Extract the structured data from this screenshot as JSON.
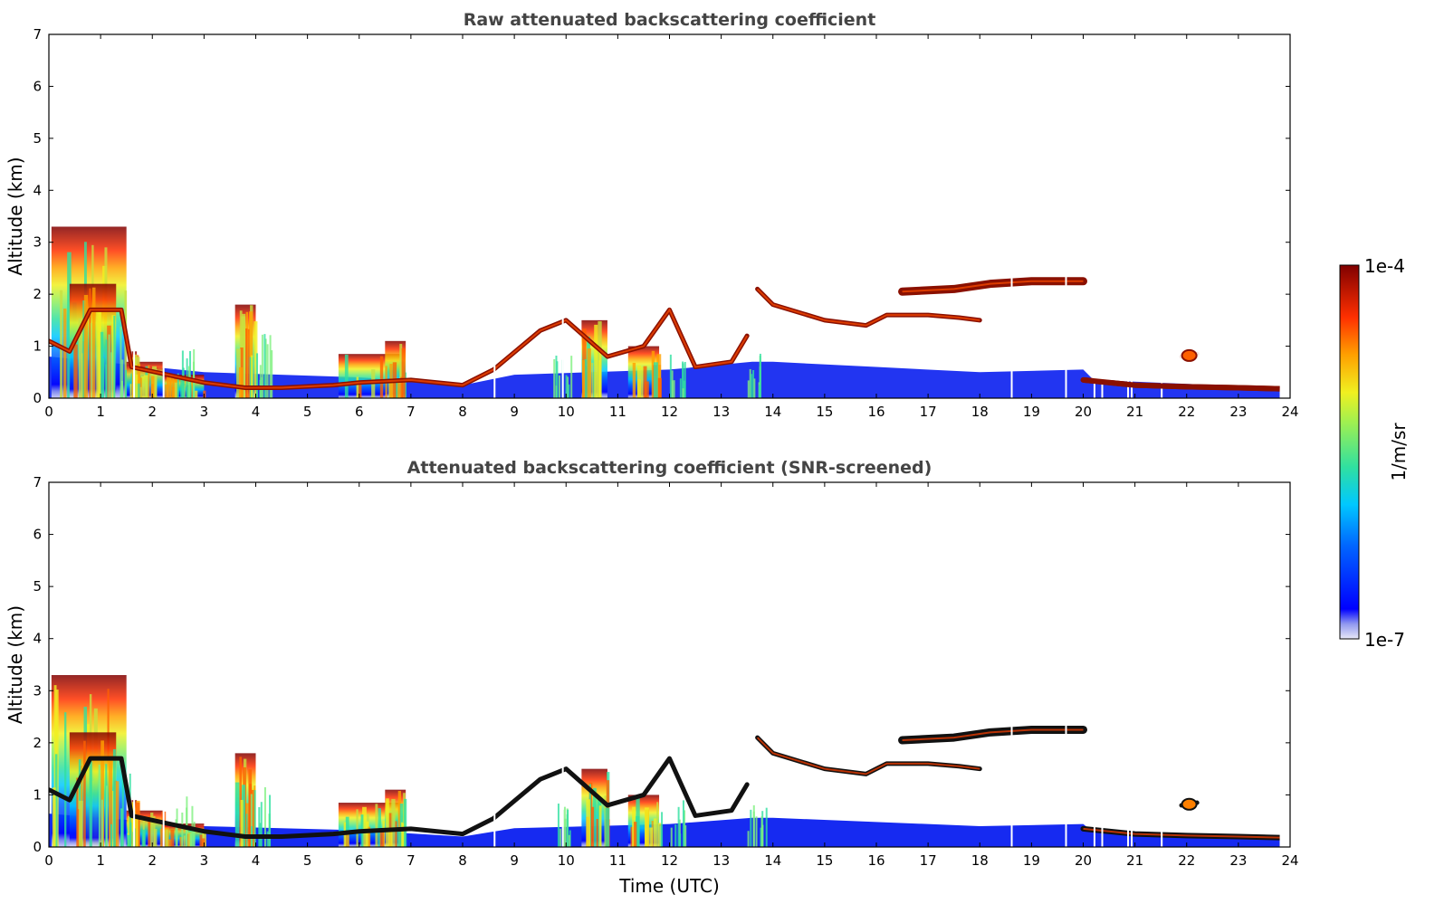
{
  "chart_data": [
    {
      "type": "heatmap",
      "title": "Raw attenuated backscattering coefficient",
      "xlabel": "",
      "ylabel": "Altitude (km)",
      "xlim": [
        0,
        24
      ],
      "ylim": [
        0,
        7
      ],
      "xticks": [
        "0",
        "1",
        "2",
        "3",
        "4",
        "5",
        "6",
        "7",
        "8",
        "9",
        "10",
        "11",
        "12",
        "13",
        "14",
        "15",
        "16",
        "17",
        "18",
        "19",
        "20",
        "21",
        "22",
        "23",
        "24"
      ],
      "yticks": [
        "0",
        "1",
        "2",
        "3",
        "4",
        "5",
        "6",
        "7"
      ],
      "data_end_x": 23.8,
      "layers": [
        {
          "name": "aerosol/cloud layer",
          "points": [
            [
              0,
              1.1
            ],
            [
              0.4,
              0.9
            ],
            [
              0.8,
              1.7
            ],
            [
              1.4,
              1.7
            ],
            [
              1.6,
              0.6
            ],
            [
              2.3,
              0.45
            ],
            [
              3,
              0.3
            ],
            [
              3.8,
              0.2
            ],
            [
              4.5,
              0.2
            ],
            [
              5.5,
              0.25
            ],
            [
              6,
              0.3
            ],
            [
              7,
              0.35
            ],
            [
              8,
              0.25
            ],
            [
              8.6,
              0.55
            ],
            [
              9.5,
              1.3
            ],
            [
              10,
              1.5
            ],
            [
              10.8,
              0.8
            ],
            [
              11.5,
              1.0
            ],
            [
              12,
              1.7
            ],
            [
              12.5,
              0.6
            ],
            [
              13.2,
              0.7
            ],
            [
              13.5,
              1.2
            ]
          ]
        },
        {
          "name": "elevated layer",
          "points": [
            [
              13.7,
              2.1
            ],
            [
              14,
              1.8
            ],
            [
              15,
              1.5
            ],
            [
              15.8,
              1.4
            ],
            [
              16.2,
              1.6
            ],
            [
              17,
              1.6
            ],
            [
              17.6,
              1.55
            ],
            [
              18,
              1.5
            ]
          ]
        },
        {
          "name": "upper layer",
          "points": [
            [
              16.5,
              2.05
            ],
            [
              17.5,
              2.1
            ],
            [
              18.2,
              2.2
            ],
            [
              19,
              2.25
            ],
            [
              20,
              2.25
            ]
          ]
        },
        {
          "name": "low layer",
          "points": [
            [
              20,
              0.35
            ],
            [
              21,
              0.25
            ],
            [
              22,
              0.22
            ],
            [
              23,
              0.2
            ],
            [
              23.8,
              0.18
            ]
          ]
        },
        {
          "name": "small cloud",
          "points": [
            [
              21.9,
              0.8
            ],
            [
              22.2,
              0.85
            ]
          ]
        }
      ]
    },
    {
      "type": "heatmap",
      "title": "Attenuated backscattering coefficient (SNR-screened)",
      "xlabel": "Time (UTC)",
      "ylabel": "Altitude (km)",
      "xlim": [
        0,
        24
      ],
      "ylim": [
        0,
        7
      ],
      "xticks": [
        "0",
        "1",
        "2",
        "3",
        "4",
        "5",
        "6",
        "7",
        "8",
        "9",
        "10",
        "11",
        "12",
        "13",
        "14",
        "15",
        "16",
        "17",
        "18",
        "19",
        "20",
        "21",
        "22",
        "23",
        "24"
      ],
      "yticks": [
        "0",
        "1",
        "2",
        "3",
        "4",
        "5",
        "6",
        "7"
      ],
      "data_end_x": 23.8
    }
  ],
  "colorbar": {
    "label": "1/m/sr",
    "max_label": "1e-4",
    "min_label": "1e-7",
    "colormap": "jet",
    "scale": "log"
  },
  "colors": {
    "low": "#0a1ff0",
    "mid": "#c8e040",
    "high": "#c81e00",
    "layer": "#8a1000",
    "screened_layer": "#111111"
  }
}
